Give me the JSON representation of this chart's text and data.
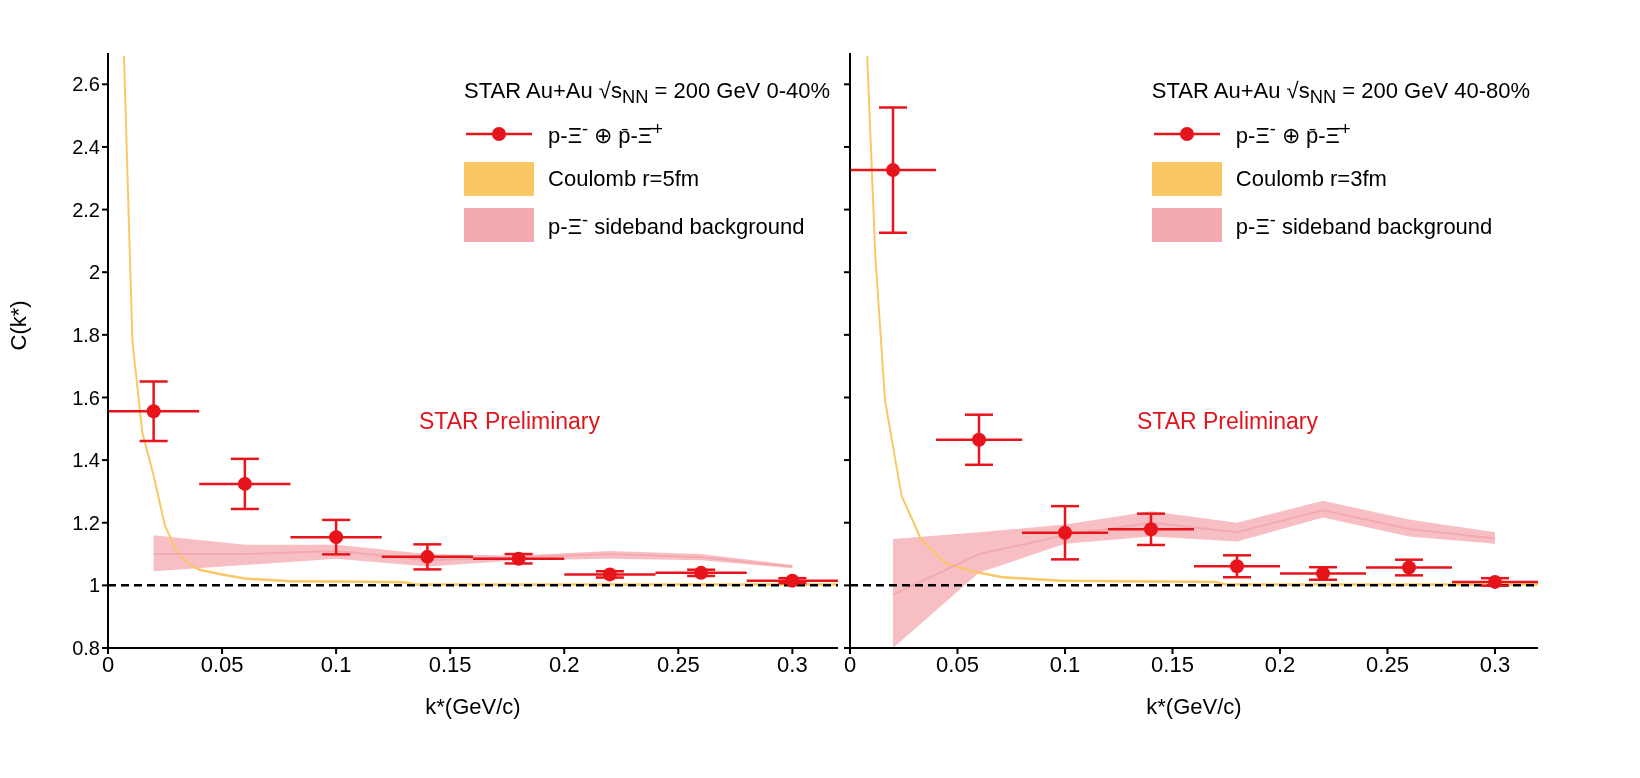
{
  "chart_data": [
    {
      "type": "scatter",
      "legend_title": "STAR Au+Au √s$_{NN}$ = 200 GeV 0-40%",
      "xlabel": "k*(GeV/c)",
      "ylabel": "C(k*)",
      "xlim": [
        0,
        0.32
      ],
      "xticks": [
        0,
        0.05,
        0.1,
        0.15,
        0.2,
        0.25,
        0.3
      ],
      "ylim": [
        0.8,
        2.7
      ],
      "yticks": [
        0.8,
        1,
        1.2,
        1.4,
        1.6,
        1.8,
        2,
        2.2,
        2.4,
        2.6
      ],
      "legend": "top right",
      "annotations": [
        "STAR Preliminary"
      ],
      "ref_lines": [
        {
          "axis": "y",
          "value": 1,
          "color": "#000000",
          "line_style": "dashed"
        }
      ],
      "series": [
        {
          "name": "p-Ξ$^{-}$ ⊕ p̄-Ξ̄$^{+}$",
          "type": "scatter",
          "marker": "circle",
          "color": "#e8141c",
          "x": [
            0.02,
            0.06,
            0.1,
            0.14,
            0.18,
            0.22,
            0.26,
            0.3
          ],
          "values": [
            1.556,
            1.324,
            1.154,
            1.091,
            1.085,
            1.035,
            1.04,
            1.015
          ],
          "errors": [
            0.095,
            0.08,
            0.055,
            0.04,
            0.015,
            0.01,
            0.01,
            0.008
          ],
          "xerrors": [
            0.02,
            0.02,
            0.02,
            0.02,
            0.02,
            0.02,
            0.02,
            0.02
          ]
        },
        {
          "name": "Coulomb r=5fm",
          "type": "line",
          "color": "#f9c864",
          "x": [
            0.007,
            0.0107,
            0.015,
            0.02,
            0.025,
            0.03,
            0.035,
            0.04,
            0.05,
            0.06,
            0.08,
            0.1,
            0.13,
            0.135,
            0.2,
            0.32
          ],
          "values": [
            2.69,
            1.78,
            1.49,
            1.35,
            1.19,
            1.11,
            1.07,
            1.05,
            1.035,
            1.022,
            1.013,
            1.012,
            1.01,
            1.003,
            1.003,
            1.003
          ],
          "lower": [
            2.686,
            1.776,
            1.486,
            1.346,
            1.186,
            1.106,
            1.066,
            1.046,
            1.031,
            1.018,
            1.009,
            1.008,
            1.006,
            0.999,
            0.999,
            0.999
          ],
          "upper": [
            2.694,
            1.784,
            1.494,
            1.354,
            1.194,
            1.114,
            1.074,
            1.054,
            1.039,
            1.026,
            1.017,
            1.016,
            1.014,
            1.007,
            1.007,
            1.007
          ]
        },
        {
          "name": "p-Ξ$^{-}$ sideband background",
          "type": "line",
          "color": "#f4a9b0",
          "x": [
            0.02,
            0.06,
            0.1,
            0.14,
            0.18,
            0.22,
            0.26,
            0.3
          ],
          "values": [
            1.1,
            1.1,
            1.11,
            1.08,
            1.09,
            1.1,
            1.09,
            1.06
          ],
          "lower": [
            1.045,
            1.065,
            1.085,
            1.06,
            1.08,
            1.085,
            1.08,
            1.055
          ],
          "upper": [
            1.16,
            1.13,
            1.13,
            1.1,
            1.095,
            1.11,
            1.1,
            1.065
          ]
        }
      ]
    },
    {
      "type": "scatter",
      "legend_title": "STAR Au+Au √s$_{NN}$ = 200 GeV 40-80%",
      "xlabel": "k*(GeV/c)",
      "xlim": [
        0,
        0.32
      ],
      "xticks": [
        0,
        0.05,
        0.1,
        0.15,
        0.2,
        0.25,
        0.3
      ],
      "ylim": [
        0.8,
        2.7
      ],
      "yticks": [
        0.8,
        1,
        1.2,
        1.4,
        1.6,
        1.8,
        2,
        2.2,
        2.4,
        2.6
      ],
      "tick_labels": "x",
      "legend": "top right",
      "annotations": [
        "STAR Preliminary"
      ],
      "ref_lines": [
        {
          "axis": "y",
          "value": 1,
          "color": "#000000",
          "line_style": "dashed"
        }
      ],
      "series": [
        {
          "name": "p-Ξ$^{-}$ ⊕ p̄-Ξ̄$^{+}$",
          "type": "scatter",
          "marker": "circle",
          "color": "#e8141c",
          "x": [
            0.02,
            0.06,
            0.1,
            0.14,
            0.18,
            0.22,
            0.26,
            0.3
          ],
          "values": [
            2.326,
            1.465,
            1.168,
            1.179,
            1.061,
            1.038,
            1.057,
            1.011
          ],
          "errors": [
            0.2,
            0.08,
            0.085,
            0.05,
            0.035,
            0.02,
            0.025,
            0.012
          ],
          "xerrors": [
            0.02,
            0.02,
            0.02,
            0.02,
            0.02,
            0.02,
            0.02,
            0.02
          ]
        },
        {
          "name": "Coulomb r=3fm",
          "type": "line",
          "color": "#f9c864",
          "x": [
            0.008,
            0.0118,
            0.0163,
            0.024,
            0.033,
            0.044,
            0.057,
            0.071,
            0.098,
            0.17,
            0.175,
            0.32
          ],
          "values": [
            2.69,
            2.05,
            1.59,
            1.286,
            1.148,
            1.072,
            1.044,
            1.026,
            1.015,
            1.011,
            1.003,
            1.003
          ],
          "lower": [
            2.686,
            2.046,
            1.586,
            1.282,
            1.144,
            1.068,
            1.04,
            1.022,
            1.011,
            1.007,
            0.999,
            0.999
          ],
          "upper": [
            2.694,
            2.054,
            1.594,
            1.29,
            1.152,
            1.076,
            1.048,
            1.03,
            1.019,
            1.015,
            1.007,
            1.007
          ]
        },
        {
          "name": "p-Ξ$^{-}$ sideband background",
          "type": "line",
          "color": "#f4a9b0",
          "x": [
            0.02,
            0.06,
            0.1,
            0.14,
            0.18,
            0.22,
            0.26,
            0.3
          ],
          "values": [
            0.97,
            1.1,
            1.16,
            1.2,
            1.17,
            1.24,
            1.18,
            1.15
          ],
          "lower": [
            0.8,
            1.04,
            1.133,
            1.156,
            1.14,
            1.217,
            1.156,
            1.133
          ],
          "upper": [
            1.148,
            1.17,
            1.194,
            1.237,
            1.2,
            1.27,
            1.21,
            1.17
          ]
        }
      ]
    }
  ]
}
